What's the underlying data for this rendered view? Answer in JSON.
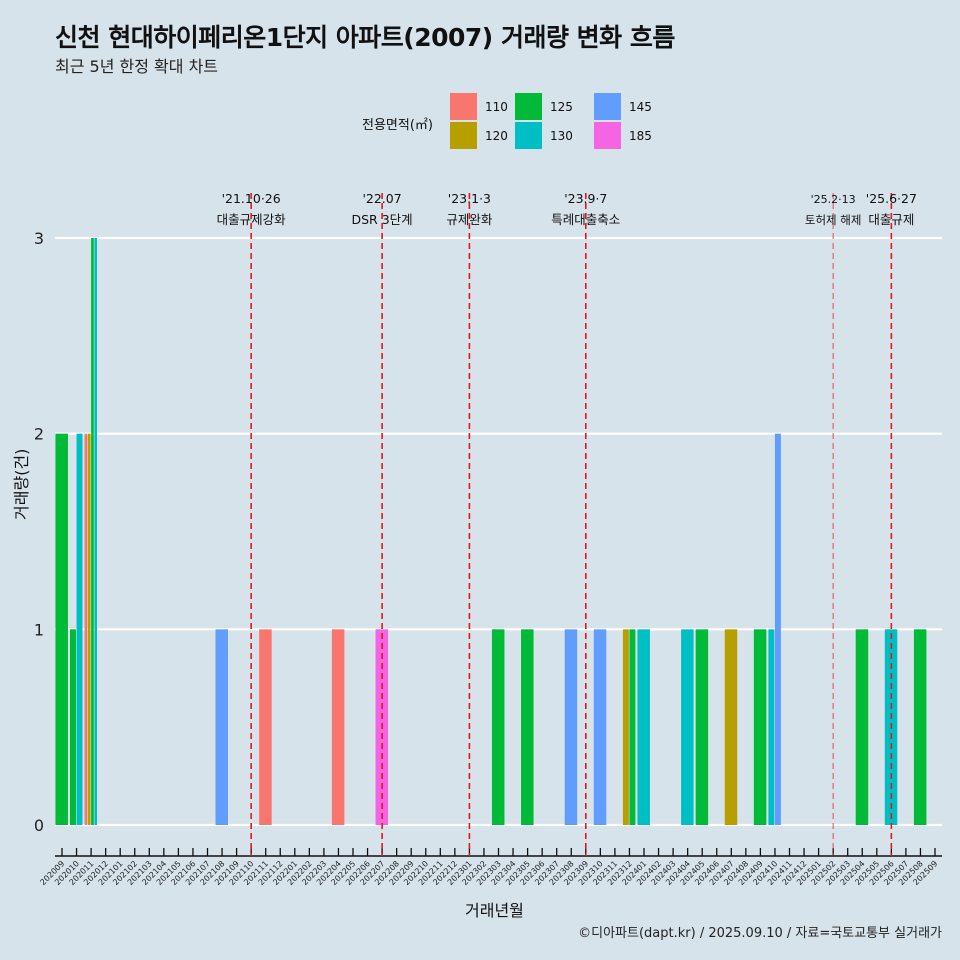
{
  "header": {
    "title": "신천 현대하이페리온1단지 아파트(2007) 거래량 변화 흐름",
    "subtitle": "최근 5년 한정 확대 차트"
  },
  "legend": {
    "title": "전용면적(㎡)",
    "items": [
      {
        "label": "110",
        "color": "#f8766d"
      },
      {
        "label": "120",
        "color": "#b79f00"
      },
      {
        "label": "125",
        "color": "#00ba38"
      },
      {
        "label": "130",
        "color": "#00bfc4"
      },
      {
        "label": "145",
        "color": "#619cff"
      },
      {
        "label": "185",
        "color": "#f564e3"
      }
    ]
  },
  "caption": "©디아파트(dapt.kr) / 2025.09.10 / 자료=국토교통부 실거래가",
  "chart_data": {
    "type": "bar",
    "title": "신천 현대하이페리온1단지 아파트(2007) 거래량 변화 흐름",
    "xlabel": "거래년월",
    "ylabel": "거래량(건)",
    "ylim": [
      0,
      3
    ],
    "yticks": [
      "0",
      "1",
      "2",
      "3"
    ],
    "grid": true,
    "legend_position": "top",
    "categories": [
      "202009",
      "202010",
      "202011",
      "202012",
      "202101",
      "202102",
      "202103",
      "202104",
      "202105",
      "202106",
      "202107",
      "202108",
      "202109",
      "202110",
      "202111",
      "202112",
      "202201",
      "202202",
      "202203",
      "202204",
      "202205",
      "202206",
      "202207",
      "202208",
      "202209",
      "202210",
      "202211",
      "202212",
      "202301",
      "202302",
      "202303",
      "202304",
      "202305",
      "202306",
      "202307",
      "202308",
      "202309",
      "202310",
      "202311",
      "202312",
      "202401",
      "202402",
      "202403",
      "202404",
      "202405",
      "202406",
      "202407",
      "202408",
      "202409",
      "202410",
      "202411",
      "202412",
      "202501",
      "202502",
      "202503",
      "202504",
      "202505",
      "202506",
      "202507",
      "202508",
      "202509"
    ],
    "bars": [
      {
        "month": "202009",
        "area": "125",
        "value": 2
      },
      {
        "month": "202010",
        "area": "125",
        "value": 1
      },
      {
        "month": "202010",
        "area": "130",
        "value": 2
      },
      {
        "month": "202011",
        "area": "110",
        "value": 2
      },
      {
        "month": "202011",
        "area": "120",
        "value": 2
      },
      {
        "month": "202011",
        "area": "125",
        "value": 3
      },
      {
        "month": "202011",
        "area": "130",
        "value": 3
      },
      {
        "month": "202108",
        "area": "145",
        "value": 1
      },
      {
        "month": "202111",
        "area": "110",
        "value": 1
      },
      {
        "month": "202204",
        "area": "110",
        "value": 1
      },
      {
        "month": "202207",
        "area": "185",
        "value": 1
      },
      {
        "month": "202303",
        "area": "125",
        "value": 1
      },
      {
        "month": "202305",
        "area": "125",
        "value": 1
      },
      {
        "month": "202308",
        "area": "145",
        "value": 1
      },
      {
        "month": "202310",
        "area": "145",
        "value": 1
      },
      {
        "month": "202312",
        "area": "120",
        "value": 1
      },
      {
        "month": "202312",
        "area": "125",
        "value": 1
      },
      {
        "month": "202401",
        "area": "130",
        "value": 1
      },
      {
        "month": "202404",
        "area": "130",
        "value": 1
      },
      {
        "month": "202405",
        "area": "125",
        "value": 1
      },
      {
        "month": "202407",
        "area": "120",
        "value": 1
      },
      {
        "month": "202409",
        "area": "125",
        "value": 1
      },
      {
        "month": "202410",
        "area": "130",
        "value": 1
      },
      {
        "month": "202410",
        "area": "145",
        "value": 2
      },
      {
        "month": "202504",
        "area": "125",
        "value": 1
      },
      {
        "month": "202506",
        "area": "130",
        "value": 1
      },
      {
        "month": "202508",
        "area": "125",
        "value": 1
      }
    ],
    "annotations": [
      {
        "month": "202110",
        "date": "'21.10·26",
        "label": "대출규제강화"
      },
      {
        "month": "202207",
        "date": "'22.07",
        "label": "DSR 3단계"
      },
      {
        "month": "202301",
        "date": "'23.1·3",
        "label": "규제완화"
      },
      {
        "month": "202309",
        "date": "'23.9·7",
        "label": "특례대출축소"
      },
      {
        "month": "202502",
        "date": "'25.2·13",
        "label": "토허제 해제"
      },
      {
        "month": "202506",
        "date": "'25.6·27",
        "label": "대출규제"
      }
    ],
    "annotation_color": "#e8141c"
  }
}
